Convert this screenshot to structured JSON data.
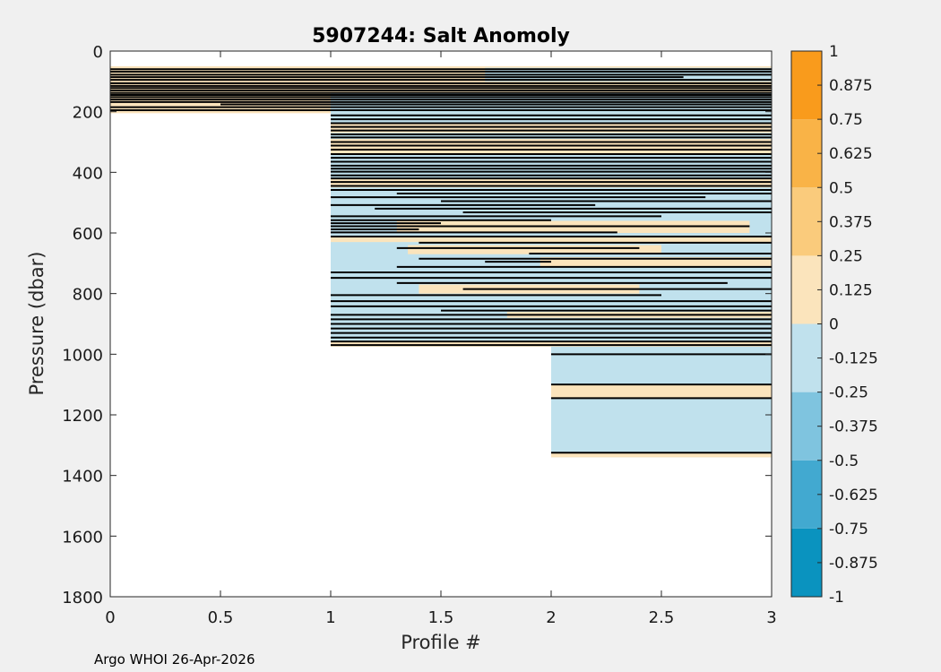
{
  "chart_data": {
    "type": "heatmap",
    "title": "5907244: Salt Anomoly",
    "xlabel": "Profile #",
    "ylabel": "Pressure (dbar)",
    "xlim": [
      0,
      3
    ],
    "ylim": [
      0,
      1800
    ],
    "y_reversed": true,
    "x_ticks": [
      "0",
      "0.5",
      "1",
      "1.5",
      "2",
      "2.5",
      "3"
    ],
    "y_ticks": [
      "0",
      "200",
      "400",
      "600",
      "800",
      "1000",
      "1200",
      "1400",
      "1600",
      "1800"
    ],
    "colorbar": {
      "range": [
        -1,
        1
      ],
      "ticks": [
        "1",
        "0.875",
        "0.75",
        "0.625",
        "0.5",
        "0.375",
        "0.25",
        "0.125",
        "0",
        "-0.125",
        "-0.25",
        "-0.375",
        "-0.5",
        "-0.625",
        "-0.75",
        "-0.875",
        "-1"
      ],
      "levels": [
        {
          "from": -1,
          "to": -0.75,
          "color": "#0a93bf"
        },
        {
          "from": -0.75,
          "to": -0.5,
          "color": "#42a9d0"
        },
        {
          "from": -0.5,
          "to": -0.25,
          "color": "#7fc4df"
        },
        {
          "from": -0.25,
          "to": 0,
          "color": "#c0e1ed"
        },
        {
          "from": 0,
          "to": 0.25,
          "color": "#fbe4bc"
        },
        {
          "from": 0.25,
          "to": 0.5,
          "color": "#facb7c"
        },
        {
          "from": 0.5,
          "to": 0.75,
          "color": "#f9b347"
        },
        {
          "from": 0.75,
          "to": 1,
          "color": "#f99b1c"
        }
      ]
    },
    "data_coverage": [
      {
        "x_from": 0,
        "x_to": 1,
        "p_from": 50,
        "p_to": 205
      },
      {
        "x_from": 1,
        "x_to": 2,
        "p_from": 50,
        "p_to": 975
      },
      {
        "x_from": 2,
        "x_to": 3,
        "p_from": 50,
        "p_to": 1340
      }
    ],
    "bands": [
      {
        "x_from": 0,
        "x_to": 3,
        "p_from": 50,
        "p_to": 205,
        "level": 0.1
      },
      {
        "x_from": 1.7,
        "x_to": 3,
        "p_from": 55,
        "p_to": 100,
        "level": -0.1
      },
      {
        "x_from": 1,
        "x_to": 3,
        "p_from": 140,
        "p_to": 205,
        "level": -0.1
      },
      {
        "x_from": 1,
        "x_to": 3,
        "p_from": 205,
        "p_to": 975,
        "level": -0.1
      },
      {
        "x_from": 1,
        "x_to": 3,
        "p_from": 240,
        "p_to": 270,
        "level": 0.1
      },
      {
        "x_from": 1,
        "x_to": 3,
        "p_from": 290,
        "p_to": 340,
        "level": 0.1
      },
      {
        "x_from": 1,
        "x_to": 3,
        "p_from": 420,
        "p_to": 450,
        "level": 0.1
      },
      {
        "x_from": 1.3,
        "x_to": 2.9,
        "p_from": 560,
        "p_to": 600,
        "level": 0.1
      },
      {
        "x_from": 1,
        "x_to": 3,
        "p_from": 610,
        "p_to": 630,
        "level": 0.1
      },
      {
        "x_from": 1.35,
        "x_to": 2.5,
        "p_from": 640,
        "p_to": 670,
        "level": 0.1
      },
      {
        "x_from": 1.95,
        "x_to": 3,
        "p_from": 680,
        "p_to": 710,
        "level": 0.1
      },
      {
        "x_from": 1.4,
        "x_to": 2.4,
        "p_from": 770,
        "p_to": 800,
        "level": 0.1
      },
      {
        "x_from": 1.8,
        "x_to": 3,
        "p_from": 860,
        "p_to": 880,
        "level": 0.1
      },
      {
        "x_from": 1,
        "x_to": 3,
        "p_from": 955,
        "p_to": 975,
        "level": 0.1
      },
      {
        "x_from": 2,
        "x_to": 3,
        "p_from": 975,
        "p_to": 1340,
        "level": -0.1
      },
      {
        "x_from": 2,
        "x_to": 3,
        "p_from": 1100,
        "p_to": 1145,
        "level": 0.1
      },
      {
        "x_from": 2,
        "x_to": 3,
        "p_from": 1325,
        "p_to": 1340,
        "level": 0.1
      }
    ],
    "contours": [
      {
        "x_from": 0,
        "x_to": 3,
        "p": 60
      },
      {
        "x_from": 0,
        "x_to": 3,
        "p": 68
      },
      {
        "x_from": 0,
        "x_to": 3,
        "p": 78
      },
      {
        "x_from": 0,
        "x_to": 2.6,
        "p": 86
      },
      {
        "x_from": 0,
        "x_to": 3,
        "p": 95
      },
      {
        "x_from": 0,
        "x_to": 3,
        "p": 106
      },
      {
        "x_from": 0,
        "x_to": 3,
        "p": 115
      },
      {
        "x_from": 0,
        "x_to": 3,
        "p": 122
      },
      {
        "x_from": 0,
        "x_to": 3,
        "p": 130
      },
      {
        "x_from": 0,
        "x_to": 3,
        "p": 138
      },
      {
        "x_from": 0,
        "x_to": 3,
        "p": 145
      },
      {
        "x_from": 0,
        "x_to": 3,
        "p": 152
      },
      {
        "x_from": 0,
        "x_to": 3,
        "p": 160
      },
      {
        "x_from": 0,
        "x_to": 3,
        "p": 168
      },
      {
        "x_from": 0.5,
        "x_to": 3,
        "p": 176
      },
      {
        "x_from": 0,
        "x_to": 3,
        "p": 185
      },
      {
        "x_from": 0,
        "x_to": 3,
        "p": 195
      },
      {
        "x_from": 1,
        "x_to": 3,
        "p": 212
      },
      {
        "x_from": 1,
        "x_to": 3,
        "p": 225
      },
      {
        "x_from": 1,
        "x_to": 3,
        "p": 238
      },
      {
        "x_from": 1,
        "x_to": 3,
        "p": 250
      },
      {
        "x_from": 1,
        "x_to": 3,
        "p": 262
      },
      {
        "x_from": 1,
        "x_to": 3,
        "p": 275
      },
      {
        "x_from": 1,
        "x_to": 3,
        "p": 285
      },
      {
        "x_from": 1,
        "x_to": 3,
        "p": 300
      },
      {
        "x_from": 1,
        "x_to": 3,
        "p": 312
      },
      {
        "x_from": 1,
        "x_to": 3,
        "p": 325
      },
      {
        "x_from": 1,
        "x_to": 3,
        "p": 340
      },
      {
        "x_from": 1,
        "x_to": 3,
        "p": 352
      },
      {
        "x_from": 1,
        "x_to": 3,
        "p": 365
      },
      {
        "x_from": 1,
        "x_to": 3,
        "p": 378
      },
      {
        "x_from": 1,
        "x_to": 3,
        "p": 388
      },
      {
        "x_from": 1,
        "x_to": 3,
        "p": 398
      },
      {
        "x_from": 1,
        "x_to": 3,
        "p": 410
      },
      {
        "x_from": 1,
        "x_to": 3,
        "p": 420
      },
      {
        "x_from": 1,
        "x_to": 3,
        "p": 432
      },
      {
        "x_from": 1,
        "x_to": 3,
        "p": 445
      },
      {
        "x_from": 1,
        "x_to": 3,
        "p": 458
      },
      {
        "x_from": 1.3,
        "x_to": 3,
        "p": 470
      },
      {
        "x_from": 1,
        "x_to": 2.7,
        "p": 482
      },
      {
        "x_from": 1.5,
        "x_to": 3,
        "p": 495
      },
      {
        "x_from": 1,
        "x_to": 2.2,
        "p": 508
      },
      {
        "x_from": 1.2,
        "x_to": 3,
        "p": 520
      },
      {
        "x_from": 1.6,
        "x_to": 3,
        "p": 532
      },
      {
        "x_from": 1,
        "x_to": 2.5,
        "p": 545
      },
      {
        "x_from": 1,
        "x_to": 2,
        "p": 558
      },
      {
        "x_from": 1,
        "x_to": 1.5,
        "p": 568
      },
      {
        "x_from": 1,
        "x_to": 2.9,
        "p": 578
      },
      {
        "x_from": 1,
        "x_to": 1.4,
        "p": 588
      },
      {
        "x_from": 1,
        "x_to": 2.3,
        "p": 598
      },
      {
        "x_from": 1,
        "x_to": 3,
        "p": 612
      },
      {
        "x_from": 1.4,
        "x_to": 3,
        "p": 632
      },
      {
        "x_from": 1.3,
        "x_to": 2.4,
        "p": 650
      },
      {
        "x_from": 1.9,
        "x_to": 3,
        "p": 668
      },
      {
        "x_from": 1.4,
        "x_to": 3,
        "p": 685
      },
      {
        "x_from": 1.7,
        "x_to": 2.0,
        "p": 695
      },
      {
        "x_from": 1.3,
        "x_to": 3,
        "p": 712
      },
      {
        "x_from": 1,
        "x_to": 3,
        "p": 730
      },
      {
        "x_from": 1,
        "x_to": 3,
        "p": 748
      },
      {
        "x_from": 1.3,
        "x_to": 2.8,
        "p": 765
      },
      {
        "x_from": 1.6,
        "x_to": 3,
        "p": 785
      },
      {
        "x_from": 1,
        "x_to": 2.5,
        "p": 805
      },
      {
        "x_from": 1,
        "x_to": 3,
        "p": 825
      },
      {
        "x_from": 1,
        "x_to": 3,
        "p": 842
      },
      {
        "x_from": 1.5,
        "x_to": 3,
        "p": 856
      },
      {
        "x_from": 1,
        "x_to": 3,
        "p": 870
      },
      {
        "x_from": 1,
        "x_to": 3,
        "p": 885
      },
      {
        "x_from": 1,
        "x_to": 3,
        "p": 900
      },
      {
        "x_from": 1,
        "x_to": 3,
        "p": 915
      },
      {
        "x_from": 1,
        "x_to": 3,
        "p": 930
      },
      {
        "x_from": 1,
        "x_to": 3,
        "p": 945
      },
      {
        "x_from": 1,
        "x_to": 3,
        "p": 958
      },
      {
        "x_from": 1,
        "x_to": 3,
        "p": 970
      },
      {
        "x_from": 2,
        "x_to": 3,
        "p": 1000
      },
      {
        "x_from": 2,
        "x_to": 3,
        "p": 1100
      },
      {
        "x_from": 2,
        "x_to": 3,
        "p": 1145
      },
      {
        "x_from": 2,
        "x_to": 3,
        "p": 1325
      }
    ]
  },
  "footer": "Argo WHOI 26-Apr-2026"
}
